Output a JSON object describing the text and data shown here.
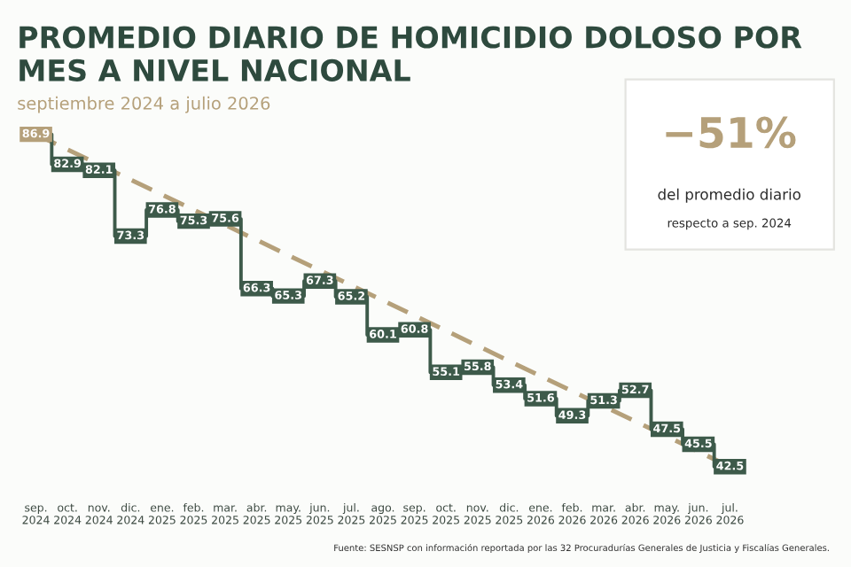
{
  "chart_data": {
    "type": "step",
    "title": "PROMEDIO DIARIO DE HOMICIDIO DOLOSO POR MES A NIVEL NACIONAL",
    "subtitle": "septiembre 2024 a julio 2026",
    "categories": [
      "sep.\n2024",
      "oct.\n2024",
      "nov.\n2024",
      "dic.\n2024",
      "ene.\n2025",
      "feb.\n2025",
      "mar.\n2025",
      "abr.\n2025",
      "may.\n2025",
      "jun.\n2025",
      "jul.\n2025",
      "ago.\n2025",
      "sep.\n2025",
      "oct.\n2025",
      "nov.\n2025",
      "dic.\n2025",
      "ene.\n2026",
      "feb.\n2026",
      "mar.\n2026",
      "abr.\n2026",
      "may.\n2026",
      "jun.\n2026",
      "jul.\n2026"
    ],
    "series": [
      {
        "color": "#3d5a4a",
        "marker": "square",
        "colors": [
          "#b5a07a",
          "#3d5a4a",
          "#3d5a4a",
          "#3d5a4a",
          "#3d5a4a",
          "#3d5a4a",
          "#3d5a4a",
          "#3d5a4a",
          "#3d5a4a",
          "#3d5a4a",
          "#3d5a4a",
          "#3d5a4a",
          "#3d5a4a",
          "#3d5a4a",
          "#3d5a4a",
          "#3d5a4a",
          "#3d5a4a",
          "#3d5a4a",
          "#3d5a4a",
          "#3d5a4a",
          "#3d5a4a",
          "#3d5a4a",
          "#3d5a4a"
        ],
        "values": [
          86.9,
          82.9,
          82.1,
          73.3,
          76.8,
          75.3,
          75.6,
          66.3,
          65.3,
          67.3,
          65.2,
          60.1,
          60.8,
          55.1,
          55.8,
          53.4,
          51.6,
          49.3,
          51.3,
          52.7,
          47.5,
          45.5,
          42.5
        ]
      },
      {
        "type": "line",
        "color": "#b5a07a",
        "line_style": "dashed",
        "x": [
          "sep.\n2024",
          "jul.\n2026"
        ],
        "values": [
          86.9,
          42.5
        ],
        "value_labels": [
          null,
          null
        ]
      }
    ],
    "data_labels": true,
    "tick_labels": "x",
    "annotations": [
      "−51%",
      "del promedio diario",
      "respecto a sep. 2024",
      "Fuente: SESNSP con información reportada por las 32 Procuradurías Generales de Justicia y Fiscalías Generales."
    ]
  }
}
